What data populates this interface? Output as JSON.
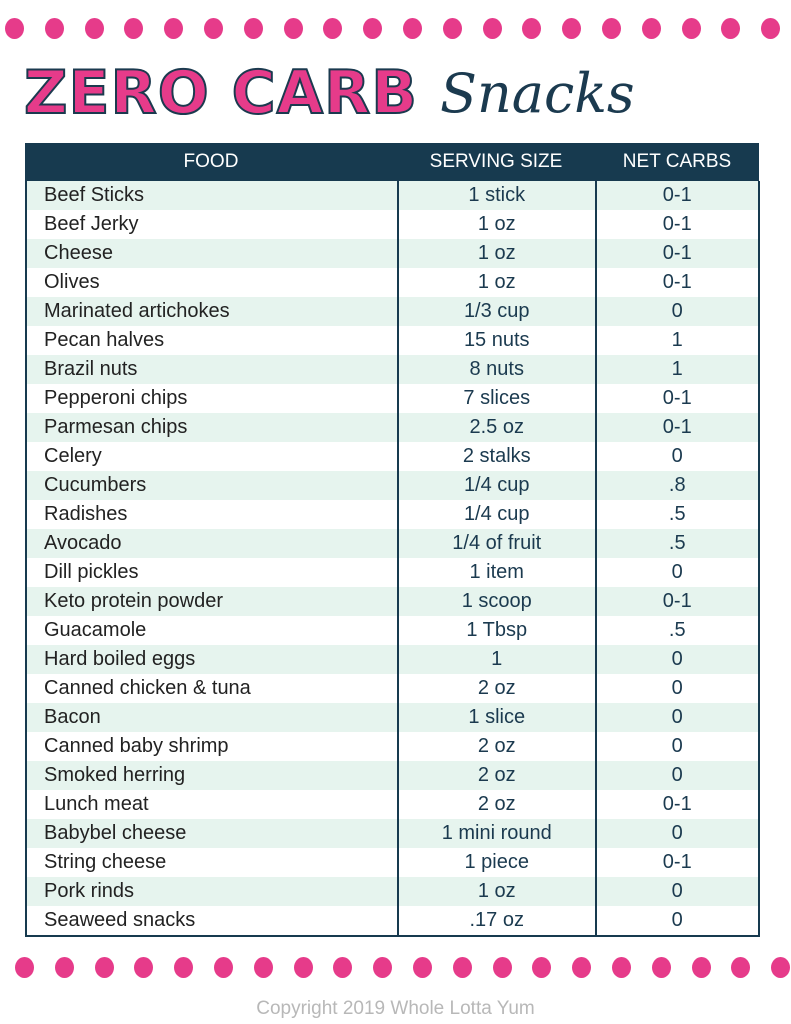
{
  "title": {
    "main": "ZERO CARB",
    "script": "Snacks"
  },
  "colors": {
    "accent": "#e63b8a",
    "header": "#173a4f",
    "stripe": "#e6f4ee"
  },
  "columns": [
    "FOOD",
    "SERVING SIZE",
    "NET CARBS"
  ],
  "rows": [
    [
      "Beef Sticks",
      "1 stick",
      "0-1"
    ],
    [
      "Beef Jerky",
      "1 oz",
      "0-1"
    ],
    [
      "Cheese",
      "1 oz",
      "0-1"
    ],
    [
      "Olives",
      "1 oz",
      "0-1"
    ],
    [
      "Marinated artichokes",
      "1/3 cup",
      "0"
    ],
    [
      "Pecan halves",
      "15 nuts",
      "1"
    ],
    [
      "Brazil nuts",
      "8 nuts",
      "1"
    ],
    [
      "Pepperoni chips",
      "7 slices",
      "0-1"
    ],
    [
      "Parmesan chips",
      "2.5 oz",
      "0-1"
    ],
    [
      "Celery",
      "2 stalks",
      "0"
    ],
    [
      "Cucumbers",
      "1/4 cup",
      ".8"
    ],
    [
      "Radishes",
      "1/4 cup",
      ".5"
    ],
    [
      "Avocado",
      "1/4 of fruit",
      ".5"
    ],
    [
      "Dill pickles",
      "1 item",
      "0"
    ],
    [
      "Keto protein powder",
      "1 scoop",
      "0-1"
    ],
    [
      "Guacamole",
      "1 Tbsp",
      ".5"
    ],
    [
      "Hard boiled eggs",
      "1",
      "0"
    ],
    [
      "Canned chicken & tuna",
      "2 oz",
      "0"
    ],
    [
      "Bacon",
      "1 slice",
      "0"
    ],
    [
      "Canned baby shrimp",
      "2 oz",
      "0"
    ],
    [
      "Smoked herring",
      "2 oz",
      "0"
    ],
    [
      "Lunch meat",
      "2 oz",
      "0-1"
    ],
    [
      "Babybel cheese",
      "1 mini round",
      "0"
    ],
    [
      "String cheese",
      "1 piece",
      "0-1"
    ],
    [
      "Pork rinds",
      "1 oz",
      "0"
    ],
    [
      "Seaweed snacks",
      ".17 oz",
      "0"
    ]
  ],
  "copyright": "Copyright 2019 Whole Lotta Yum"
}
